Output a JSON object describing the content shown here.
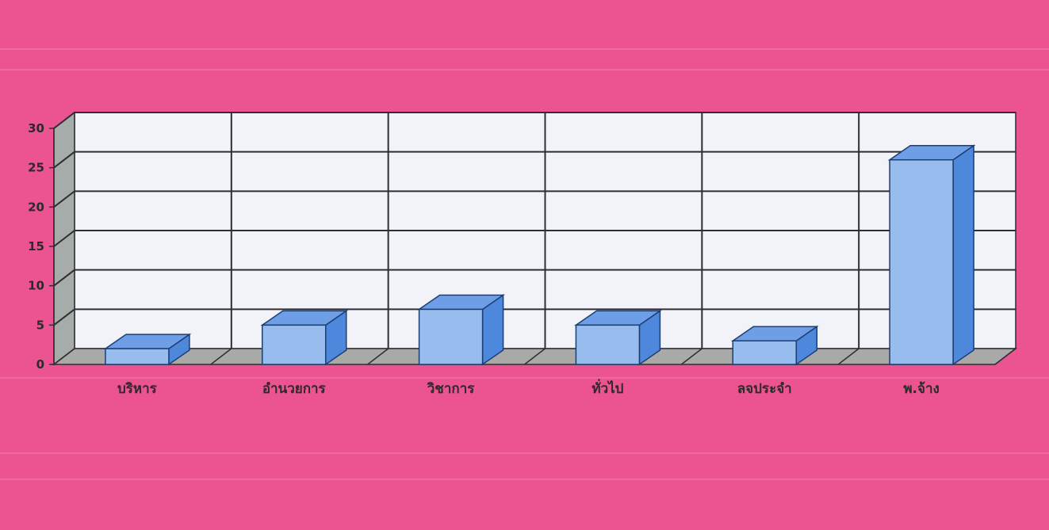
{
  "chart_data": {
    "type": "bar",
    "title": "",
    "xlabel": "",
    "ylabel": "",
    "categories": [
      "บริหาร",
      "อำนวยการ",
      "วิชาการ",
      "ทั่วไป",
      "ลจประจำ",
      "พ.จ้าง"
    ],
    "values": [
      2,
      5,
      7,
      5,
      3,
      26
    ],
    "ylim": [
      0,
      30
    ],
    "yticks": [
      0,
      5,
      10,
      15,
      20,
      25,
      30
    ],
    "grid": true,
    "legend": "none",
    "style": "3d-column"
  },
  "colors": {
    "background": "#ec5391",
    "plot_back": "#f2f3f8",
    "floor": "#a9aaa8",
    "side_wall": "#a6ada8",
    "grid": "#2e2e34",
    "bar_front": "#97bcee",
    "bar_top": "#6e9fe6",
    "bar_side": "#4e88dd",
    "bar_edge": "#1d3e73"
  }
}
